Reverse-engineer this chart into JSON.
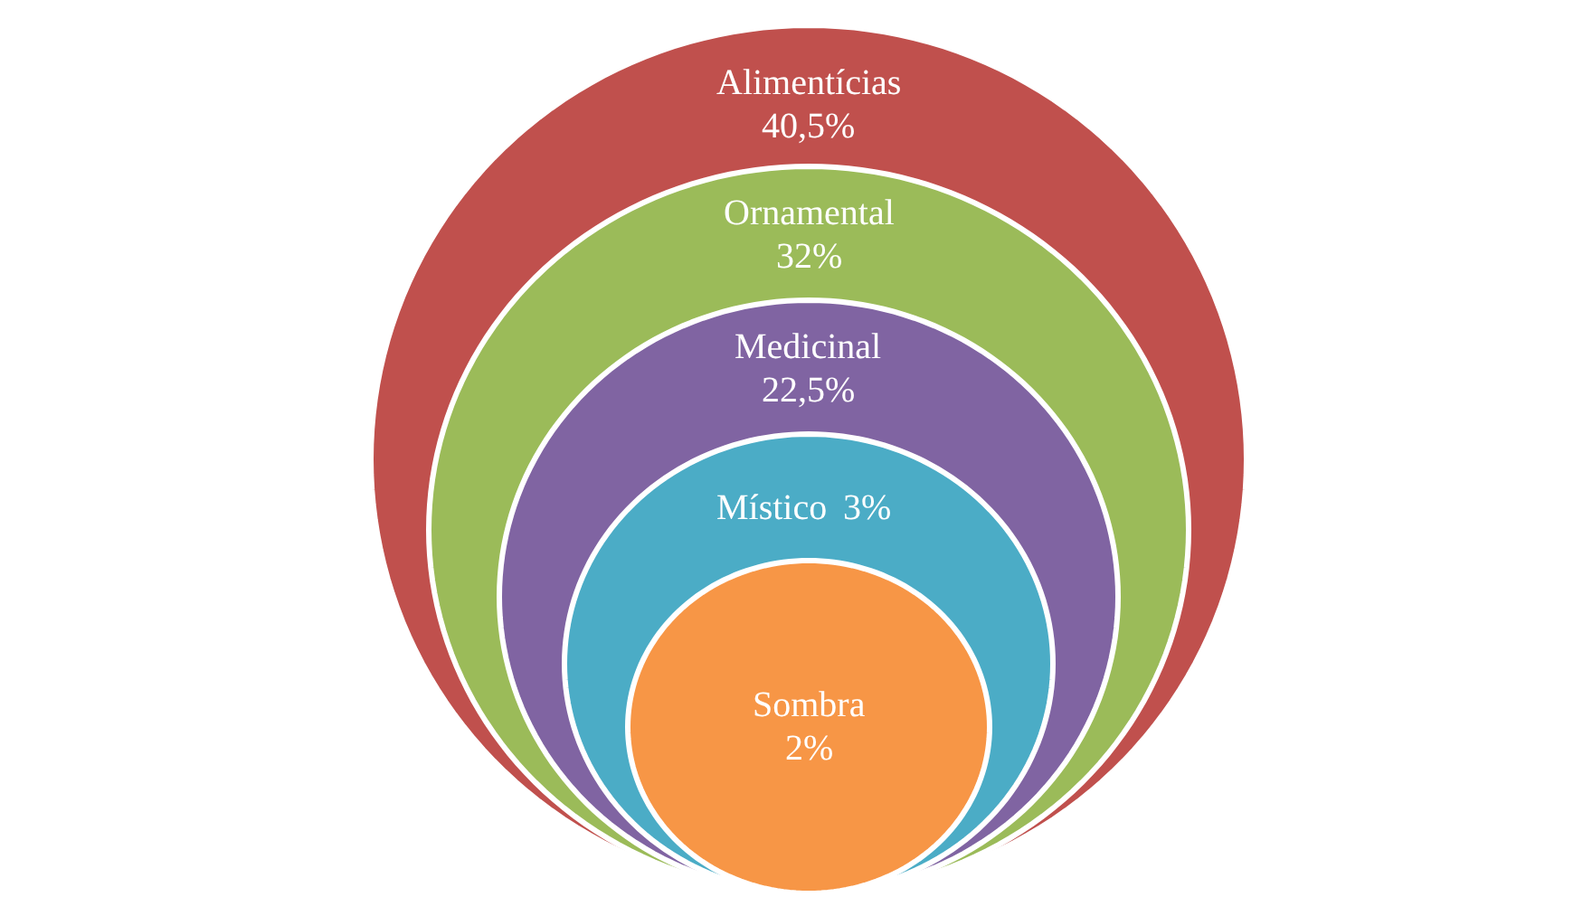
{
  "chart_data": {
    "type": "other",
    "categories": [
      "Alimentícias",
      "Ornamental",
      "Medicinal",
      "Místico",
      "Sombra"
    ],
    "values": [
      40.5,
      32,
      22.5,
      3,
      2
    ],
    "value_labels": [
      "40,5%",
      "32%",
      "22,5%",
      "3%",
      "2%"
    ],
    "colors": [
      "#c0504d",
      "#9bbb59",
      "#8064a2",
      "#4bacc6",
      "#f79646"
    ]
  }
}
